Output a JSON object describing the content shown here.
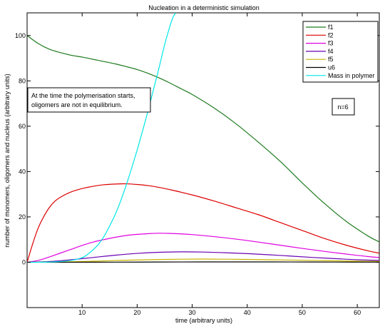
{
  "chart_data": {
    "type": "line",
    "title": "Nucleation in a deterministic simulation",
    "xlabel": "time (arbitrary units)",
    "ylabel": "number of monomers, oligomers and nucleus (arbitrary units)",
    "xlim": [
      0,
      64
    ],
    "ylim": [
      -20,
      110
    ],
    "xticks": [
      10,
      20,
      30,
      40,
      50,
      60
    ],
    "yticks": [
      0,
      20,
      40,
      60,
      80,
      100
    ],
    "grid": false,
    "legend_position": "top-right",
    "annotations": [
      {
        "id": "equilibrium_note",
        "lines": [
          "At the time the polymerisation starts,",
          "oligomers are not in equilibrium."
        ]
      },
      {
        "id": "n_note",
        "lines": [
          "n=6"
        ]
      }
    ],
    "series": [
      {
        "name": "f1",
        "color": "#1e7b1e",
        "x": [
          0,
          2,
          4,
          6,
          8,
          10,
          12,
          14,
          16,
          18,
          20,
          22,
          24,
          26,
          28,
          30,
          34,
          38,
          42,
          46,
          50,
          54,
          58,
          62,
          64
        ],
        "y": [
          100,
          96.5,
          94,
          92.5,
          91.3,
          90.5,
          89.5,
          88.5,
          87.5,
          86.3,
          85,
          83.3,
          81.3,
          79,
          76.5,
          74,
          68,
          61,
          53,
          44.5,
          35,
          26,
          18,
          11.5,
          9
        ]
      },
      {
        "name": "f2",
        "color": "#dd0000",
        "x": [
          0,
          1,
          2,
          3,
          4,
          5,
          6,
          8,
          10,
          12,
          14,
          16,
          18,
          20,
          22,
          24,
          26,
          30,
          34,
          38,
          42,
          46,
          50,
          54,
          58,
          62,
          64
        ],
        "y": [
          0,
          8,
          15,
          20,
          24,
          26.8,
          28.6,
          31,
          32.5,
          33.5,
          34.2,
          34.5,
          34.6,
          34.3,
          33.8,
          33,
          32,
          29.7,
          27,
          24,
          21,
          17.5,
          14,
          10.5,
          7.5,
          5,
          4
        ]
      },
      {
        "name": "f3",
        "color": "#e000e0",
        "x": [
          0,
          2,
          4,
          6,
          8,
          10,
          12,
          14,
          16,
          18,
          20,
          22,
          24,
          26,
          28,
          30,
          34,
          38,
          42,
          46,
          50,
          54,
          58,
          62,
          64
        ],
        "y": [
          0,
          0.8,
          2.3,
          4,
          5.7,
          7.4,
          8.9,
          10,
          11,
          11.8,
          12.3,
          12.6,
          12.8,
          12.7,
          12.5,
          12.2,
          11.3,
          10.2,
          8.9,
          7.5,
          6.1,
          4.8,
          3.6,
          2.5,
          2.1
        ]
      },
      {
        "name": "f4",
        "color": "#6a00b0",
        "x": [
          0,
          4,
          8,
          12,
          16,
          20,
          24,
          28,
          32,
          36,
          40,
          44,
          48,
          52,
          56,
          60,
          64
        ],
        "y": [
          0,
          0.3,
          1.1,
          2.1,
          3.1,
          3.9,
          4.4,
          4.6,
          4.5,
          4.2,
          3.8,
          3.3,
          2.7,
          2.1,
          1.6,
          1.1,
          0.8
        ]
      },
      {
        "name": "f5",
        "color": "#c8b400",
        "x": [
          0,
          4,
          8,
          12,
          16,
          20,
          24,
          28,
          32,
          36,
          40,
          44,
          48,
          52,
          56,
          60,
          64
        ],
        "y": [
          0,
          0.05,
          0.2,
          0.45,
          0.75,
          1.0,
          1.2,
          1.35,
          1.4,
          1.35,
          1.25,
          1.1,
          0.95,
          0.8,
          0.62,
          0.45,
          0.35
        ]
      },
      {
        "name": "u6",
        "color": "#000000",
        "x": [
          0,
          8,
          16,
          24,
          32,
          40,
          48,
          56,
          64
        ],
        "y": [
          0,
          0.01,
          0.05,
          0.1,
          0.15,
          0.15,
          0.12,
          0.08,
          0.05
        ]
      },
      {
        "name": "Mass in polymer",
        "color": "#00e6e6",
        "x": [
          0,
          2,
          4,
          6,
          8,
          10,
          11,
          12,
          13,
          14,
          15,
          16,
          17,
          18,
          19,
          20,
          21,
          22,
          23,
          24,
          25,
          26,
          26.5,
          27
        ],
        "y": [
          0,
          0,
          0.1,
          0.3,
          0.8,
          2,
          3.5,
          5.5,
          8,
          11.5,
          16,
          21,
          27,
          34,
          41.5,
          49.5,
          58,
          67,
          76.5,
          86,
          96,
          104.5,
          108,
          110
        ]
      }
    ]
  }
}
